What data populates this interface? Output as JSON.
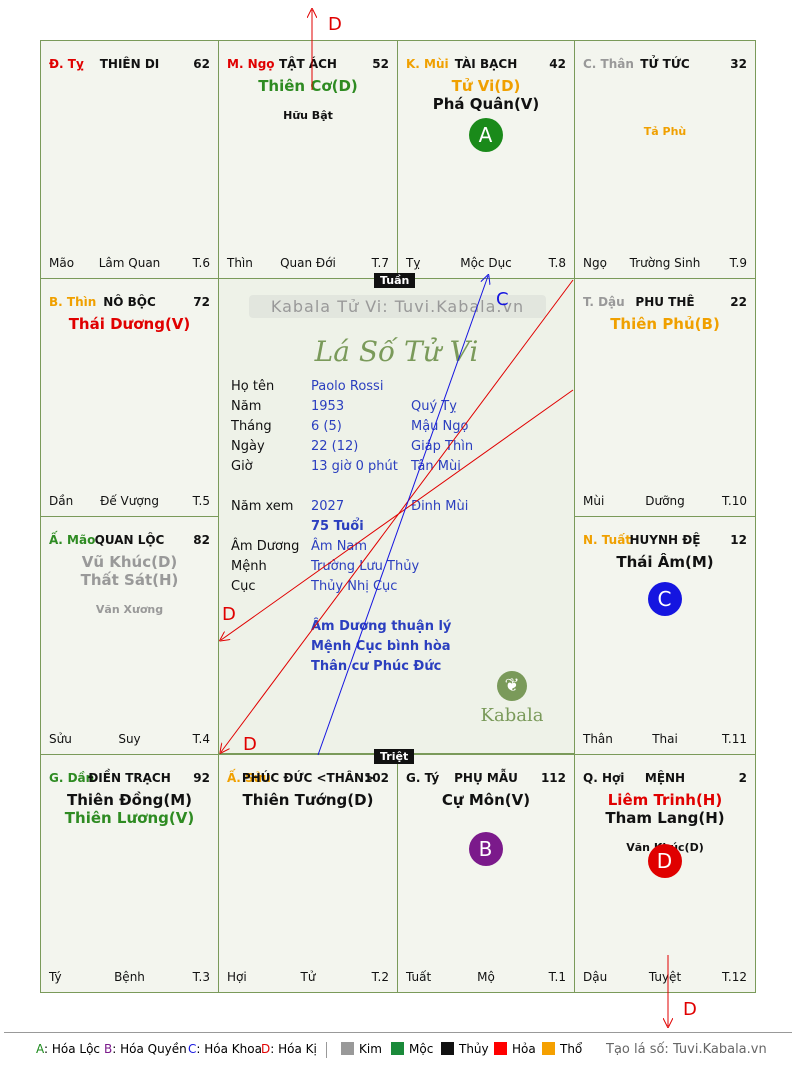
{
  "cells": [
    {
      "id": "ty-top",
      "stem": "Đ. Tỵ",
      "stem_color": "#e00000",
      "palace": "THIÊN DI",
      "num": "62",
      "stars": [],
      "minor": "",
      "minor_color": "#111",
      "branch": "Mão",
      "stage": "Lâm Quan",
      "tnum": "T.6"
    },
    {
      "id": "ngo",
      "stem": "M. Ngọ",
      "stem_color": "#e00000",
      "palace": "TẬT ÁCH",
      "num": "52",
      "stars": [
        {
          "text": "Thiên Cơ(D)",
          "color": "#2e8b22"
        }
      ],
      "minor": "Hữu Bật",
      "minor_color": "#111",
      "branch": "Thìn",
      "stage": "Quan Đới",
      "tnum": "T.7"
    },
    {
      "id": "mui",
      "stem": "K. Mùi",
      "stem_color": "#f0a000",
      "palace": "TÀI BẠCH",
      "num": "42",
      "stars": [
        {
          "text": "Tử Vi(D)",
          "color": "#f0a000"
        },
        {
          "text": "Phá Quân(V)",
          "color": "#111"
        }
      ],
      "minor": "",
      "minor_color": "#111",
      "branch": "Tỵ",
      "stage": "Mộc Dục",
      "tnum": "T.8"
    },
    {
      "id": "than-top",
      "stem": "C. Thân",
      "stem_color": "#999",
      "palace": "TỬ TỨC",
      "num": "32",
      "stars": [],
      "minor": "Tả Phù",
      "minor_color": "#f0a000",
      "branch": "Ngọ",
      "stage": "Trường Sinh",
      "tnum": "T.9"
    },
    {
      "id": "thin",
      "stem": "B. Thìn",
      "stem_color": "#f0a000",
      "palace": "NÔ BỘC",
      "num": "72",
      "stars": [
        {
          "text": "Thái Dương(V)",
          "color": "#e00000"
        }
      ],
      "minor": "",
      "minor_color": "#111",
      "branch": "Dần",
      "stage": "Đế Vượng",
      "tnum": "T.5"
    },
    {
      "id": "dau",
      "stem": "T. Dậu",
      "stem_color": "#999",
      "palace": "PHU THÊ",
      "num": "22",
      "stars": [
        {
          "text": "Thiên Phủ(B)",
          "color": "#f0a000"
        }
      ],
      "minor": "",
      "minor_color": "#111",
      "branch": "Mùi",
      "stage": "Dưỡng",
      "tnum": "T.10"
    },
    {
      "id": "mao",
      "stem": "Ấ. Mão",
      "stem_color": "#2e8b22",
      "palace": "QUAN LỘC",
      "num": "82",
      "stars": [
        {
          "text": "Vũ Khúc(D)",
          "color": "#999"
        },
        {
          "text": "Thất Sát(H)",
          "color": "#999"
        }
      ],
      "minor": "Văn Xương",
      "minor_color": "#999",
      "branch": "Sửu",
      "stage": "Suy",
      "tnum": "T.4"
    },
    {
      "id": "tuat",
      "stem": "N. Tuất",
      "stem_color": "#f0a000",
      "palace": "HUYNH ĐỆ",
      "num": "12",
      "stars": [
        {
          "text": "Thái Âm(M)",
          "color": "#111"
        }
      ],
      "minor": "",
      "minor_color": "#111",
      "branch": "Thân",
      "stage": "Thai",
      "tnum": "T.11"
    },
    {
      "id": "dan",
      "stem": "G. Dần",
      "stem_color": "#2e8b22",
      "palace": "ĐIỀN TRẠCH",
      "num": "92",
      "stars": [
        {
          "text": "Thiên Đồng(M)",
          "color": "#111"
        },
        {
          "text": "Thiên Lương(V)",
          "color": "#2e8b22"
        }
      ],
      "minor": "",
      "minor_color": "#111",
      "branch": "Tý",
      "stage": "Bệnh",
      "tnum": "T.3"
    },
    {
      "id": "suu",
      "stem": "Ấ. Sửu",
      "stem_color": "#f0a000",
      "palace": "PHÚC ĐỨC <THÂN>",
      "num": "102",
      "stars": [
        {
          "text": "Thiên Tướng(D)",
          "color": "#111"
        }
      ],
      "minor": "",
      "minor_color": "#111",
      "branch": "Hợi",
      "stage": "Tử",
      "tnum": "T.2"
    },
    {
      "id": "ty-bottom",
      "stem": "G. Tý",
      "stem_color": "#111",
      "palace": "PHỤ MẪU",
      "num": "112",
      "stars": [
        {
          "text": "Cự Môn(V)",
          "color": "#111"
        }
      ],
      "minor": "",
      "minor_color": "#111",
      "branch": "Tuất",
      "stage": "Mộ",
      "tnum": "T.1"
    },
    {
      "id": "hoi",
      "stem": "Q. Hợi",
      "stem_color": "#111",
      "palace": "MỆNH",
      "num": "2",
      "stars": [
        {
          "text": "Liêm Trinh(H)",
          "color": "#e00000"
        },
        {
          "text": "Tham Lang(H)",
          "color": "#111"
        }
      ],
      "minor": "Văn Khúc(D)",
      "minor_color": "#111",
      "branch": "Dậu",
      "stage": "Tuyệt",
      "tnum": "T.12"
    }
  ],
  "markers": [
    {
      "cell": "mui",
      "letter": "A",
      "color": "#1a8a1a"
    },
    {
      "cell": "tuat",
      "letter": "C",
      "color": "#1515e0"
    },
    {
      "cell": "ty-bottom",
      "letter": "B",
      "color": "#7b1a8b"
    },
    {
      "cell": "hoi",
      "letter": "D",
      "color": "#e00000"
    }
  ],
  "center": {
    "tuan": "Tuần",
    "triet": "Triệt",
    "watermark": "Kabala Tử Vi: Tuvi.Kabala.vn",
    "title": "Lá Số Tử Vi",
    "rows": [
      {
        "label": "Họ tên",
        "v1": "Paolo Rossi",
        "v2": ""
      },
      {
        "label": "Năm",
        "v1": "1953",
        "v2": "Quý Tỵ"
      },
      {
        "label": "Tháng",
        "v1": "6  (5)",
        "v2": "Mậu Ngọ"
      },
      {
        "label": "Ngày",
        "v1": "22  (12)",
        "v2": "Giáp Thìn"
      },
      {
        "label": "Giờ",
        "v1": "13 giờ 0 phút",
        "v2": "Tân Mùi"
      },
      {
        "label": "Năm xem",
        "v1": "2027",
        "v2": "Đinh Mùi"
      },
      {
        "label": "",
        "v1": "75 Tuổi",
        "v2": ""
      },
      {
        "label": "Âm Dương",
        "v1": "Âm Nam",
        "v2": ""
      },
      {
        "label": "Mệnh",
        "v1": "Trường Lưu Thủy",
        "v2": ""
      },
      {
        "label": "Cục",
        "v1": "Thủy Nhị Cục",
        "v2": ""
      }
    ],
    "notes": [
      "Âm Dương thuận lý",
      "Mệnh Cục bình hòa",
      "Thân cư Phúc Đức"
    ],
    "logo_text": "Kabala"
  },
  "arrows": {
    "d_label": "D",
    "c_label": "C"
  },
  "footer": {
    "legend": [
      {
        "key": "A",
        "text": ": Hóa Lộc",
        "key_color": "#1a8a1a"
      },
      {
        "key": "B",
        "text": ": Hóa Quyền",
        "key_color": "#7b1a8b"
      },
      {
        "key": "C",
        "text": ": Hóa Khoa",
        "key_color": "#1515e0"
      },
      {
        "key": "D",
        "text": ": Hóa Kị",
        "key_color": "#e00000"
      }
    ],
    "elements": [
      {
        "name": "Kim",
        "color": "#999999"
      },
      {
        "name": "Mộc",
        "color": "#1a8a3a"
      },
      {
        "name": "Thủy",
        "color": "#111111"
      },
      {
        "name": "Hỏa",
        "color": "#ff0000"
      },
      {
        "name": "Thổ",
        "color": "#f5a000"
      }
    ],
    "credit": "Tạo lá số: Tuvi.Kabala.vn"
  }
}
